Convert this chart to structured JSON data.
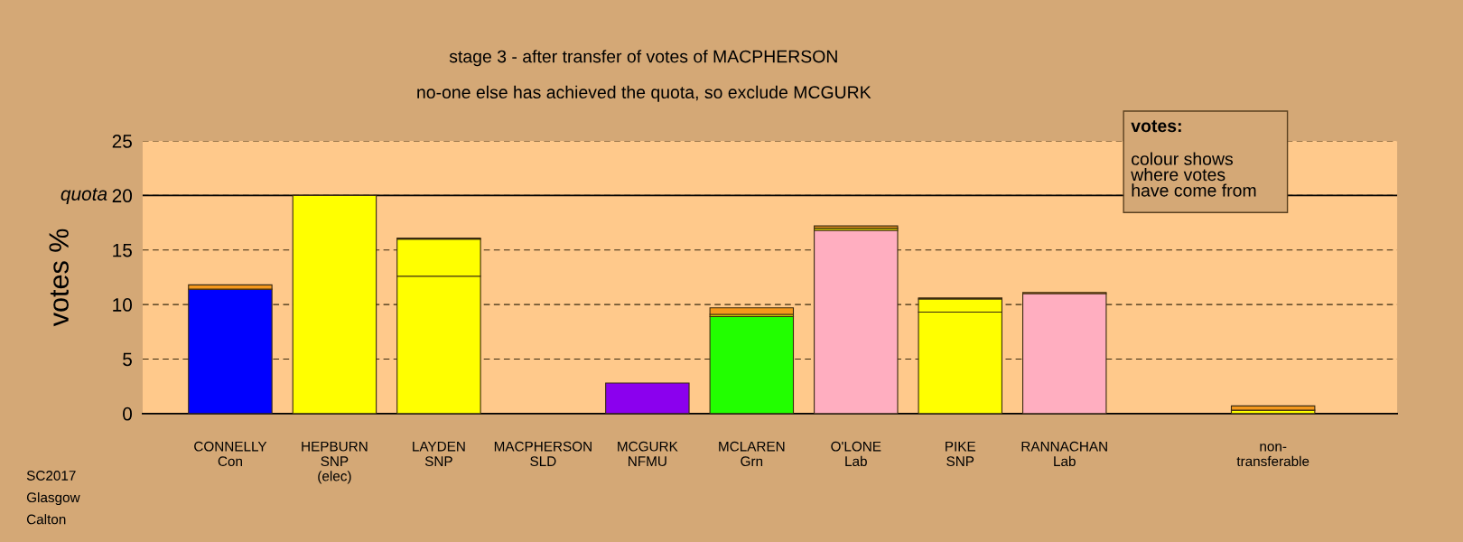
{
  "chart_data": {
    "type": "bar",
    "title": "stage 3 - after transfer of votes of MACPHERSON",
    "subtitle": "no-one else has achieved the quota, so exclude MCGURK",
    "ylabel": "votes %",
    "categories": [
      "CONNELLY\nCon",
      "HEPBURN\nSNP\n(elec)",
      "LAYDEN\nSNP",
      "MACPHERSON\nSLD",
      "MCGURK\nNFMU",
      "MCLAREN\nGrn",
      "O'LONE\nLab",
      "PIKE\nSNP",
      "RANNACHAN\nLab",
      null,
      "non-\ntransferable"
    ],
    "stacked": true,
    "series": [
      {
        "colors": [
          "#0000ff",
          "#ffff00",
          "#ffff00",
          "#f4981c",
          "#8b00ee",
          "#22ff00",
          "#ffaec0",
          "#ffff00",
          "#ffaec0",
          "#ffff00",
          "#ffff00"
        ],
        "values": [
          11.4,
          20,
          12.6,
          null,
          2.8,
          8.9,
          16.8,
          9.3,
          11.0,
          null,
          null
        ]
      },
      {
        "color": "#ffff00",
        "values": [
          null,
          null,
          3.4,
          null,
          null,
          0.2,
          0.2,
          1.2,
          null,
          null,
          0.3
        ]
      },
      {
        "color": "#f4981c",
        "values": [
          0.4,
          null,
          0.1,
          null,
          null,
          0.6,
          0.2,
          0.1,
          0.1,
          null,
          0.4
        ]
      }
    ],
    "ylim": [
      0,
      25
    ],
    "yticks": [
      0,
      5,
      10,
      15,
      20,
      25
    ],
    "grid": "y",
    "ref_lines": [
      {
        "axis": "y",
        "value": 20,
        "label": "quota",
        "color": "#000000",
        "line_style": "solid"
      }
    ],
    "annotations": [
      "votes:",
      "colour shows\nwhere votes\nhave come from",
      "SC2017\nGlasgow\nCalton"
    ]
  }
}
